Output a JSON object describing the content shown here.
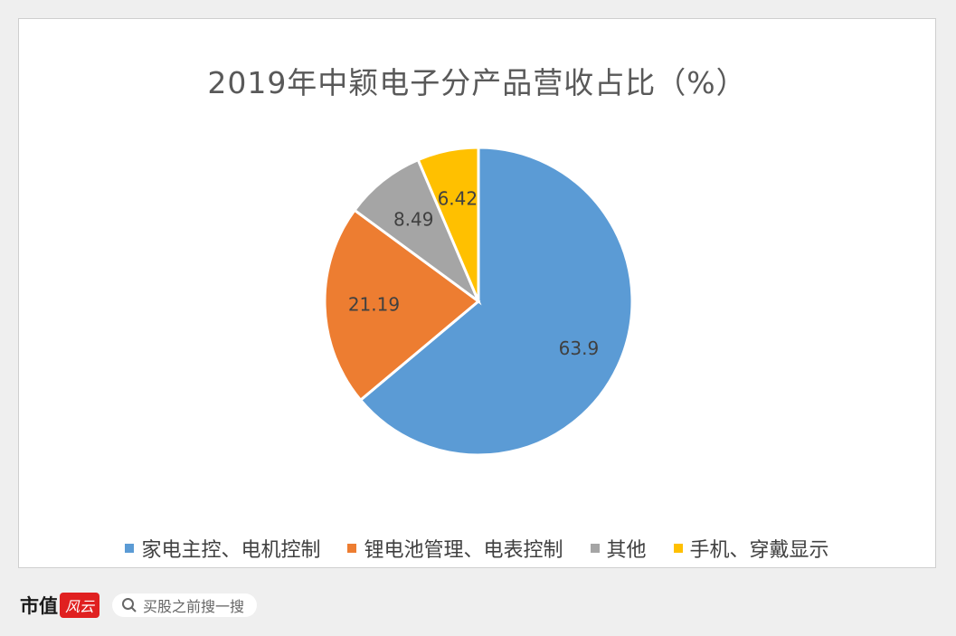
{
  "chart_data": {
    "type": "pie",
    "title": "2019年中颖电子分产品营收占比（%）",
    "categories": [
      "家电主控、电机控制",
      "锂电池管理、电表控制",
      "其他",
      "手机、穿戴显示"
    ],
    "values": [
      63.9,
      21.19,
      8.49,
      6.42
    ],
    "value_labels": [
      "63.9",
      "21.19",
      "8.49",
      "6.42"
    ],
    "colors": [
      "#5b9bd5",
      "#ed7d31",
      "#a5a5a5",
      "#ffc000"
    ],
    "legend_position": "bottom",
    "start_angle": "12 o'clock",
    "direction": "clockwise"
  },
  "footer": {
    "logo_text": "市值",
    "logo_badge": "风云",
    "search_icon": "search-icon",
    "search_placeholder": "买股之前搜一搜"
  },
  "watermark": "市值风云"
}
